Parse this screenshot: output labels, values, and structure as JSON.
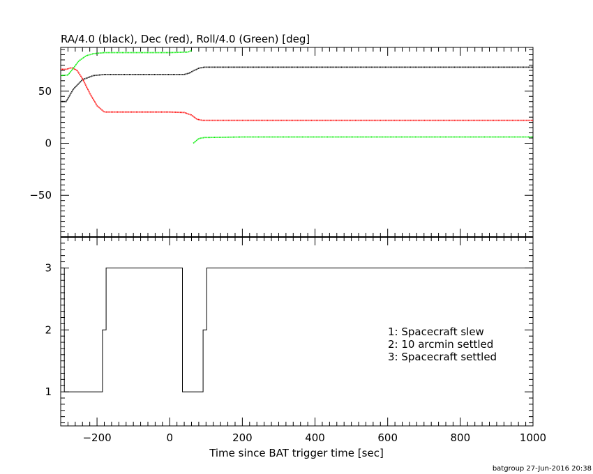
{
  "chart_data": [
    {
      "type": "line",
      "title": "RA/4.0 (black), Dec (red), Roll/4.0 (Green) [deg]",
      "xlabel": "",
      "ylabel": "",
      "xlim": [
        -300,
        1000
      ],
      "ylim": [
        -90,
        92
      ],
      "yticks": [
        50,
        0,
        -50
      ],
      "grid": false,
      "series": [
        {
          "color": "#000000",
          "x": [
            -300,
            -285,
            -265,
            -240,
            -210,
            -180,
            -150,
            -100,
            -50,
            0,
            40,
            55,
            68,
            80,
            95,
            200,
            400,
            600,
            800,
            1000
          ],
          "y": [
            40,
            40,
            52,
            61,
            65,
            66,
            66,
            66,
            66,
            66,
            66,
            67.5,
            70,
            72,
            73,
            73,
            73,
            73,
            73,
            73
          ]
        },
        {
          "color": "#ff0000",
          "x": [
            -300,
            -285,
            -270,
            -255,
            -240,
            -220,
            -200,
            -180,
            -150,
            -100,
            0,
            40,
            60,
            75,
            90,
            200,
            400,
            600,
            800,
            1000
          ],
          "y": [
            71,
            71,
            72.5,
            70,
            62,
            48,
            36,
            30,
            30,
            30,
            30,
            29.5,
            27,
            23,
            22,
            22,
            22,
            22,
            22,
            22
          ]
        },
        {
          "color": "#00ee00",
          "x": [
            -300,
            -280,
            -265,
            -250,
            -230,
            -210,
            -180,
            -100,
            0,
            50,
            60
          ],
          "y": [
            65,
            65.5,
            72,
            79,
            84,
            86,
            87,
            87,
            87,
            87.5,
            89
          ]
        },
        {
          "color": "#00ee00",
          "x": [
            65,
            80,
            95,
            200,
            400,
            600,
            800,
            1000
          ],
          "y": [
            0,
            4.5,
            5.5,
            6,
            6,
            6,
            6,
            6
          ]
        }
      ]
    },
    {
      "type": "line",
      "title": "",
      "xlabel": "Time since BAT trigger time [sec]",
      "ylabel": "",
      "xlim": [
        -300,
        1000
      ],
      "ylim": [
        0.45,
        3.5
      ],
      "xticks": [
        -200,
        0,
        200,
        400,
        600,
        800,
        1000
      ],
      "yticks": [
        1,
        2,
        3
      ],
      "grid": false,
      "series": [
        {
          "color": "#000000",
          "x": [
            -300,
            -290,
            -290,
            -185,
            -185,
            -175,
            -175,
            35,
            35,
            92,
            92,
            102,
            102,
            1000
          ],
          "y": [
            3,
            3,
            1,
            1,
            2,
            2,
            3,
            3,
            1,
            1,
            2,
            2,
            3,
            3
          ]
        }
      ],
      "annotations": [
        "1: Spacecraft slew",
        "2: 10 arcmin settled",
        "3: Spacecraft settled"
      ]
    }
  ],
  "footer": "batgroup 27-Jun-2016 20:38"
}
